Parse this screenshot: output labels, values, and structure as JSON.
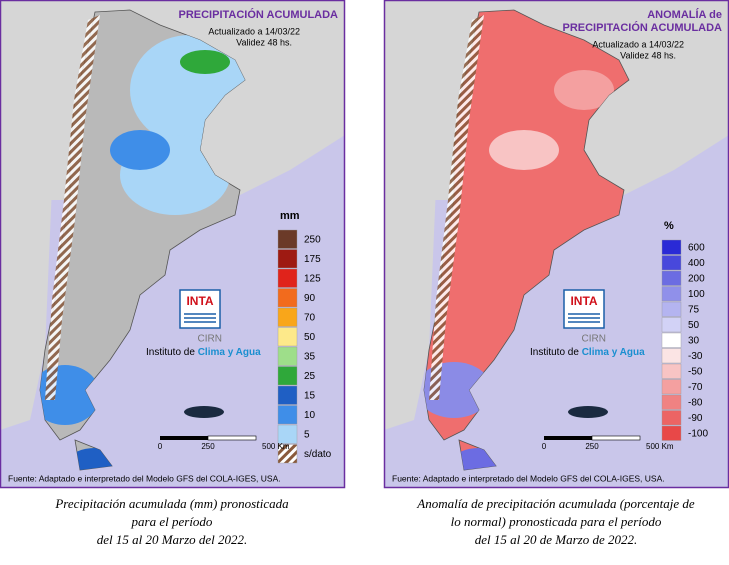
{
  "panels": [
    {
      "title": [
        "PRECIPITACIÓN ACUMULADA"
      ],
      "updated": "Actualizado a 14/03/22",
      "validity": "Validez 48 hs.",
      "legend_unit": "mm",
      "legend": [
        {
          "label": "250",
          "color": "#6b3a28"
        },
        {
          "label": "175",
          "color": "#9e1a12"
        },
        {
          "label": "125",
          "color": "#e0231b"
        },
        {
          "label": "90",
          "color": "#f26b1d"
        },
        {
          "label": "70",
          "color": "#f9a61a"
        },
        {
          "label": "50",
          "color": "#fde98a"
        },
        {
          "label": "35",
          "color": "#9ede8a"
        },
        {
          "label": "25",
          "color": "#2fa83a"
        },
        {
          "label": "15",
          "color": "#1f5fc4"
        },
        {
          "label": "10",
          "color": "#3f8ee8"
        },
        {
          "label": "5",
          "color": "#a9d6f7"
        },
        {
          "label": "s/dato",
          "color": "hatch"
        }
      ],
      "scale": [
        "0",
        "250",
        "500 Km"
      ],
      "logo": "INTA",
      "cirn": "CIRN",
      "institute": [
        "Instituto de",
        "Clima y Agua"
      ],
      "source": "Fuente: Adaptado e interpretado del Modelo GFS del COLA-IGES, USA.",
      "caption": [
        "Precipitación acumulada (mm) pronosticada",
        "para el período",
        "del 15 al 20 Marzo del 2022."
      ]
    },
    {
      "title": [
        "ANOMALÍA de",
        "PRECIPITACIÓN ACUMULADA"
      ],
      "updated": "Actualizado a 14/03/22",
      "validity": "Validez 48 hs.",
      "legend_unit": "%",
      "legend": [
        {
          "label": "600",
          "color": "#2a2ad6"
        },
        {
          "label": "400",
          "color": "#4848dc"
        },
        {
          "label": "200",
          "color": "#6c6ce2"
        },
        {
          "label": "100",
          "color": "#9090ea"
        },
        {
          "label": "75",
          "color": "#b4b4f0"
        },
        {
          "label": "50",
          "color": "#d2d2f6"
        },
        {
          "label": "30",
          "color": "#ffffff"
        },
        {
          "label": "-30",
          "color": "#fbe4e4"
        },
        {
          "label": "-50",
          "color": "#f8c4c4"
        },
        {
          "label": "-70",
          "color": "#f4a0a0"
        },
        {
          "label": "-80",
          "color": "#f08282"
        },
        {
          "label": "-90",
          "color": "#ec6464"
        },
        {
          "label": "-100",
          "color": "#e84848"
        }
      ],
      "scale": [
        "0",
        "250",
        "500 Km"
      ],
      "logo": "INTA",
      "cirn": "CIRN",
      "institute": [
        "Instituto de",
        "Clima y Agua"
      ],
      "source": "Fuente: Adaptado e interpretado del Modelo GFS del COLA-IGES, USA.",
      "caption": [
        "Anomalía de precipitación acumulada (porcentaje de",
        "lo normal) pronosticada para el período",
        "del 15 al 20 de Marzo de 2022."
      ]
    }
  ]
}
